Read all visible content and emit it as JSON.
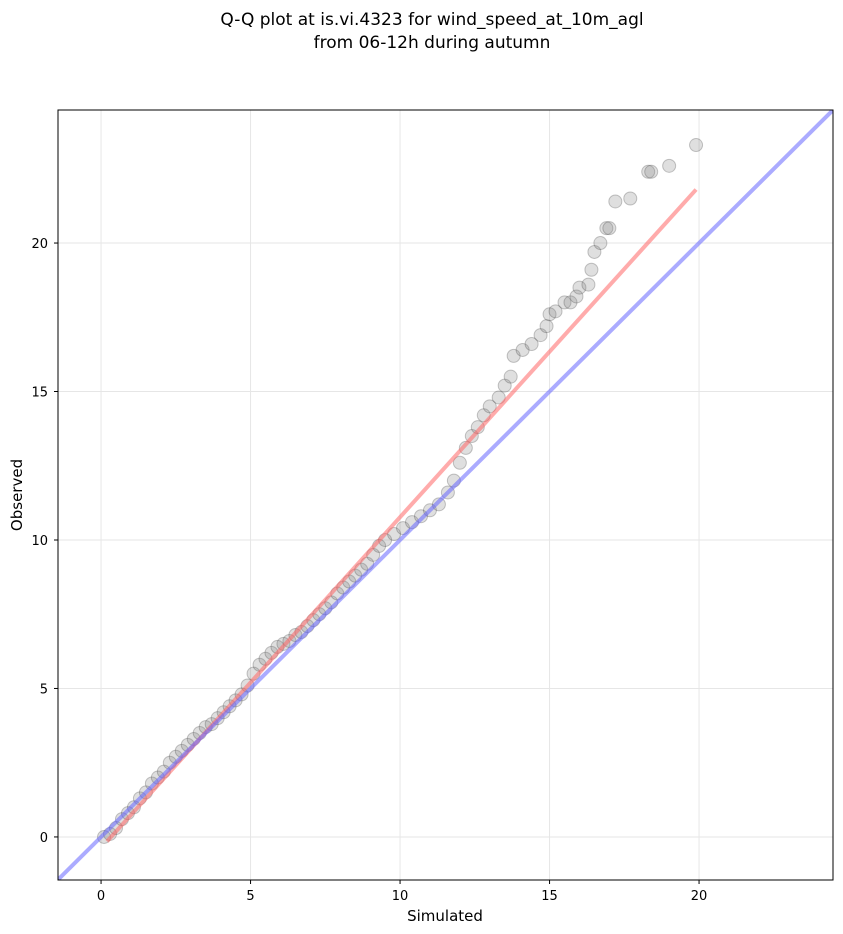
{
  "chart_data": {
    "type": "scatter",
    "title": [
      "Q-Q plot at is.vi.4323 for wind_speed_at_10m_agl",
      "from 06-12h during autumn"
    ],
    "x_label": "Simulated",
    "y_label": "Observed",
    "xlim": [
      -1.44,
      24.48
    ],
    "ylim": [
      -1.45,
      24.48
    ],
    "xticks": [
      0,
      5,
      10,
      15,
      20
    ],
    "yticks": [
      0,
      5,
      10,
      15,
      20
    ],
    "grid": true,
    "points": {
      "color": "#808080",
      "x": [
        0.1,
        0.3,
        0.5,
        0.7,
        0.9,
        1.1,
        1.3,
        1.5,
        1.7,
        1.9,
        2.1,
        2.3,
        2.5,
        2.7,
        2.9,
        3.1,
        3.3,
        3.5,
        3.7,
        3.9,
        4.1,
        4.3,
        4.5,
        4.7,
        4.9,
        5.1,
        5.3,
        5.5,
        5.7,
        5.9,
        6.1,
        6.3,
        6.5,
        6.7,
        6.9,
        7.1,
        7.3,
        7.5,
        7.7,
        7.9,
        8.1,
        8.3,
        8.5,
        8.7,
        8.9,
        9.1,
        9.3,
        9.5,
        9.8,
        10.1,
        10.4,
        10.7,
        11.0,
        11.3,
        11.6,
        11.8,
        12.0,
        12.2,
        12.4,
        12.6,
        12.8,
        13.0,
        13.3,
        13.5,
        13.7,
        13.8,
        14.1,
        14.4,
        14.7,
        14.9,
        15.0,
        15.2,
        15.5,
        15.7,
        15.9,
        16.0,
        16.3,
        16.4,
        16.5,
        16.7,
        16.9,
        17.0,
        17.2,
        17.7,
        18.3,
        18.4,
        19.0,
        19.9
      ],
      "values": [
        0,
        0.1,
        0.3,
        0.6,
        0.8,
        1.0,
        1.3,
        1.5,
        1.8,
        2.0,
        2.2,
        2.5,
        2.7,
        2.9,
        3.1,
        3.3,
        3.5,
        3.7,
        3.8,
        4.0,
        4.2,
        4.4,
        4.6,
        4.8,
        5.1,
        5.5,
        5.8,
        6.0,
        6.2,
        6.4,
        6.5,
        6.6,
        6.8,
        6.9,
        7.1,
        7.3,
        7.5,
        7.7,
        7.9,
        8.2,
        8.4,
        8.6,
        8.8,
        9.0,
        9.2,
        9.5,
        9.8,
        10.0,
        10.2,
        10.4,
        10.6,
        10.8,
        11.0,
        11.2,
        11.6,
        12.0,
        12.6,
        13.1,
        13.5,
        13.8,
        14.2,
        14.5,
        14.8,
        15.2,
        15.5,
        16.2,
        16.4,
        16.6,
        16.9,
        17.2,
        17.6,
        17.7,
        18.0,
        18.0,
        18.2,
        18.5,
        18.6,
        19.1,
        19.7,
        20.0,
        20.5,
        20.5,
        21.4,
        21.5,
        22.4,
        22.4,
        22.6,
        23.3
      ]
    },
    "lines": [
      {
        "color": "#ff6666",
        "x": [
          0.2,
          19.9
        ],
        "values": [
          -0.15,
          21.8
        ]
      },
      {
        "color": "#6666ff",
        "x": [
          -1.44,
          24.48
        ],
        "values": [
          -1.44,
          24.48
        ]
      }
    ]
  }
}
